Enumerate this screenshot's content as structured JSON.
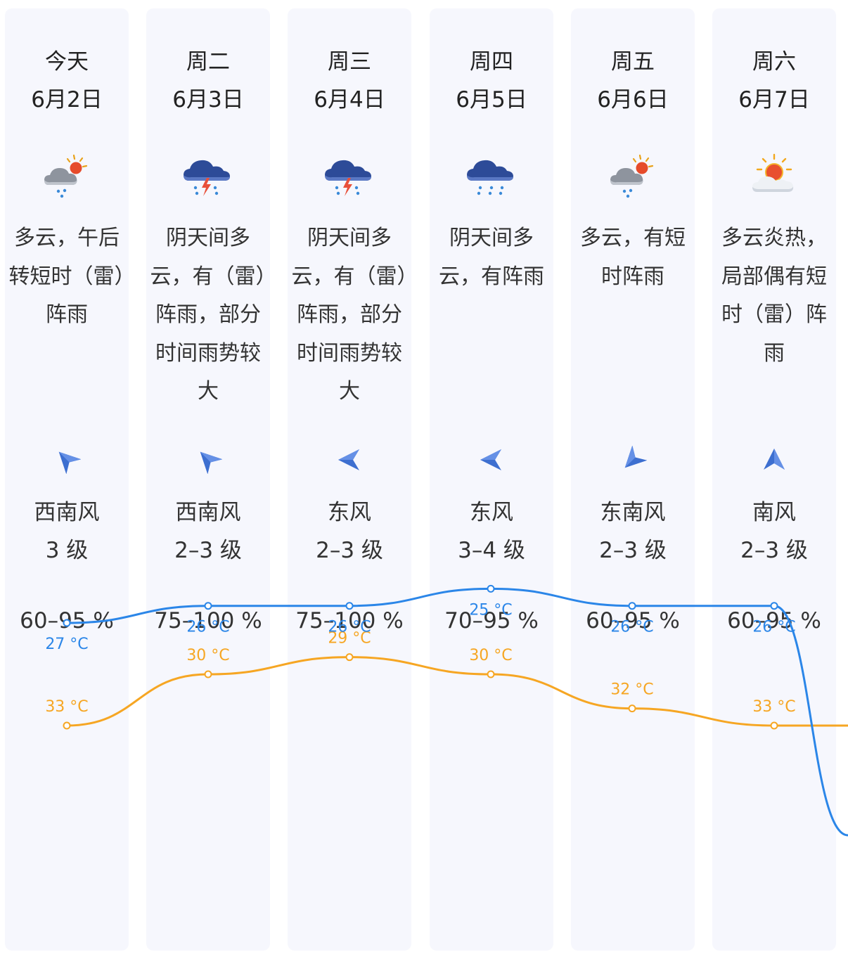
{
  "colors": {
    "column_bg": "#f6f7fd",
    "high_temp": "#f6a623",
    "low_temp": "#2b86e8",
    "wind_arrow": "#3d6fd0"
  },
  "days": [
    {
      "name": "今天",
      "date": "6月2日",
      "icon": "partly-cloudy-showers-icon",
      "desc": "多云，午后转短时（雷）阵雨",
      "wind_dir": "西南风",
      "wind_level": "3 级",
      "humidity": "60–95 %",
      "high": 33,
      "high_label": "33 °C",
      "low": 27,
      "low_label": "27 °C"
    },
    {
      "name": "周二",
      "date": "6月3日",
      "icon": "thunderstorm-icon",
      "desc": "阴天间多云，有（雷）阵雨，部分时间雨势较大",
      "wind_dir": "西南风",
      "wind_level": "2–3 级",
      "humidity": "75–100 %",
      "high": 30,
      "high_label": "30 °C",
      "low": 26,
      "low_label": "26 °C"
    },
    {
      "name": "周三",
      "date": "6月4日",
      "icon": "thunderstorm-icon",
      "desc": "阴天间多云，有（雷）阵雨，部分时间雨势较大",
      "wind_dir": "东风",
      "wind_level": "2–3 级",
      "humidity": "75–100 %",
      "high": 29,
      "high_label": "29 °C",
      "low": 26,
      "low_label": "26 °C"
    },
    {
      "name": "周四",
      "date": "6月5日",
      "icon": "rain-showers-icon",
      "desc": "阴天间多云，有阵雨",
      "wind_dir": "东风",
      "wind_level": "3–4 级",
      "humidity": "70–95 %",
      "high": 30,
      "high_label": "30 °C",
      "low": 25,
      "low_label": "25 °C"
    },
    {
      "name": "周五",
      "date": "6月6日",
      "icon": "partly-cloudy-showers-icon",
      "desc": "多云，有短时阵雨",
      "wind_dir": "东南风",
      "wind_level": "2–3 级",
      "humidity": "60–95 %",
      "high": 32,
      "high_label": "32 °C",
      "low": 26,
      "low_label": "26 °C"
    },
    {
      "name": "周六",
      "date": "6月7日",
      "icon": "sunny-hot-cloudy-icon",
      "desc": "多云炎热，局部偶有短时（雷）阵雨",
      "wind_dir": "南风",
      "wind_level": "2–3 级",
      "humidity": "60–95 %",
      "high": 33,
      "high_label": "33 °C",
      "low": 26,
      "low_label": "26 °C"
    }
  ]
}
